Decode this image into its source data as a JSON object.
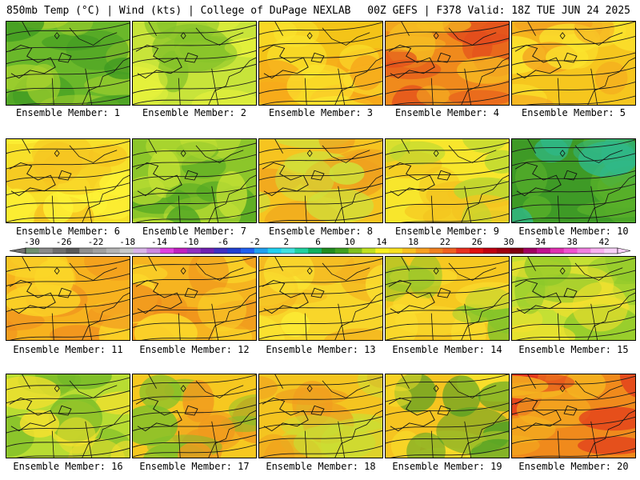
{
  "header": {
    "left": "850mb Temp (°C) | Wind (kts) | College of DuPage NEXLAB",
    "right": "00Z GEFS | F378 Valid: 18Z TUE JUN 24 2025"
  },
  "members": [
    {
      "label": "Ensemble Member: 1",
      "palette": [
        "#6ab82a",
        "#3f9a22",
        "#a8d22e"
      ]
    },
    {
      "label": "Ensemble Member: 2",
      "palette": [
        "#c8e43a",
        "#e8f23c",
        "#84c22a"
      ]
    },
    {
      "label": "Ensemble Member: 3",
      "palette": [
        "#f4c418",
        "#f7a81a",
        "#fbe830"
      ]
    },
    {
      "label": "Ensemble Member: 4",
      "palette": [
        "#f08a1c",
        "#e24a1c",
        "#f6c022"
      ]
    },
    {
      "label": "Ensemble Member: 5",
      "palette": [
        "#f6c61e",
        "#f4a420",
        "#fbe42e"
      ]
    },
    {
      "label": "Ensemble Member: 6",
      "palette": [
        "#f8e02a",
        "#f6c420",
        "#fdf236"
      ]
    },
    {
      "label": "Ensemble Member: 7",
      "palette": [
        "#8cc62a",
        "#53a824",
        "#c6e234"
      ]
    },
    {
      "label": "Ensemble Member: 8",
      "palette": [
        "#f6c420",
        "#f0a01e",
        "#cfe03a"
      ]
    },
    {
      "label": "Ensemble Member: 9",
      "palette": [
        "#f8e62c",
        "#b8d832",
        "#f4c420"
      ]
    },
    {
      "label": "Ensemble Member: 10",
      "palette": [
        "#3e9a26",
        "#58b02a",
        "#2fb888"
      ]
    },
    {
      "label": "Ensemble Member: 11",
      "palette": [
        "#f7b21e",
        "#f0901e",
        "#fbd628"
      ]
    },
    {
      "label": "Ensemble Member: 12",
      "palette": [
        "#f6b420",
        "#ef901c",
        "#fbd82a"
      ]
    },
    {
      "label": "Ensemble Member: 13",
      "palette": [
        "#f8d62a",
        "#f4b420",
        "#fbec34"
      ]
    },
    {
      "label": "Ensemble Member: 14",
      "palette": [
        "#f6c820",
        "#86c42a",
        "#fbe030"
      ]
    },
    {
      "label": "Ensemble Member: 15",
      "palette": [
        "#c4e034",
        "#8cc82a",
        "#f6e02e"
      ]
    },
    {
      "label": "Ensemble Member: 16",
      "palette": [
        "#b8dc32",
        "#72b828",
        "#f4e02e"
      ]
    },
    {
      "label": "Ensemble Member: 17",
      "palette": [
        "#f6c820",
        "#f09a1e",
        "#7cc02a"
      ]
    },
    {
      "label": "Ensemble Member: 18",
      "palette": [
        "#f4c420",
        "#c8e034",
        "#f09c1e"
      ]
    },
    {
      "label": "Ensemble Member: 19",
      "palette": [
        "#f6c420",
        "#3c9a24",
        "#f8e22c"
      ]
    },
    {
      "label": "Ensemble Member: 20",
      "palette": [
        "#f08a1c",
        "#e0341c",
        "#f4b420"
      ]
    }
  ],
  "colorbar": {
    "tick_labels": [
      "-30",
      "-26",
      "-22",
      "-18",
      "-14",
      "-10",
      "-6",
      "-2",
      "2",
      "6",
      "10",
      "14",
      "18",
      "22",
      "26",
      "30",
      "34",
      "38",
      "42"
    ],
    "colors": [
      "#6f8f6f",
      "#8a8a8a",
      "#6e6e6e",
      "#5a5a5a",
      "#8f8f8f",
      "#a0a0a0",
      "#b4b4b4",
      "#c8c8c8",
      "#d8b4e8",
      "#cc88e0",
      "#e040e0",
      "#c020c0",
      "#9030c0",
      "#7020b0",
      "#4030c0",
      "#2040d0",
      "#2060f0",
      "#20a0f0",
      "#20d0f0",
      "#40e0e0",
      "#20d0a0",
      "#10b060",
      "#208c20",
      "#40a020",
      "#80c020",
      "#c0e020",
      "#f8f020",
      "#f8e020",
      "#f8c020",
      "#f8a020",
      "#f08020",
      "#f06020",
      "#e83020",
      "#e01010",
      "#c00010",
      "#a00010",
      "#800010",
      "#a00060",
      "#c01090",
      "#e030b0",
      "#f050d0",
      "#f080e0",
      "#f8b0f0",
      "#f8d0f8"
    ]
  }
}
